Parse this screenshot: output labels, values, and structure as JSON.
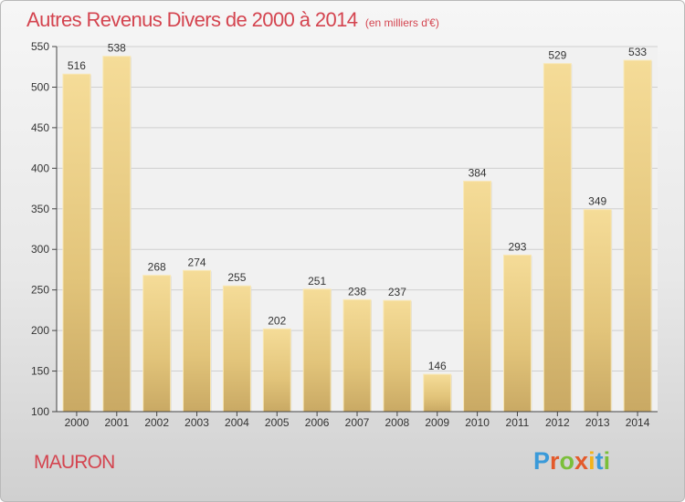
{
  "chart_data": {
    "type": "bar",
    "title": "Autres Revenus Divers de 2000 à 2014",
    "subtitle": "(en milliers d'€)",
    "categories": [
      "2000",
      "2001",
      "2002",
      "2003",
      "2004",
      "2005",
      "2006",
      "2007",
      "2008",
      "2009",
      "2010",
      "2011",
      "2012",
      "2013",
      "2014"
    ],
    "values": [
      516,
      538,
      268,
      274,
      255,
      202,
      251,
      238,
      237,
      146,
      384,
      293,
      529,
      349,
      533
    ],
    "ylim": [
      100,
      550
    ],
    "yticks": [
      100,
      150,
      200,
      250,
      300,
      350,
      400,
      450,
      500,
      550
    ],
    "grid": true,
    "data_labels": true,
    "bar_color": "#e8c97a"
  },
  "footer": {
    "commune": "MAURON",
    "brand": "Proxiti",
    "brand_colors": [
      "#3a9ad9",
      "#e35a2b",
      "#7bbf3a",
      "#e35a2b",
      "#f2b31b",
      "#3a9ad9",
      "#7bbf3a"
    ]
  },
  "colors": {
    "title": "#d4444f",
    "axis": "#444444",
    "grid": "#cfcfcf"
  }
}
